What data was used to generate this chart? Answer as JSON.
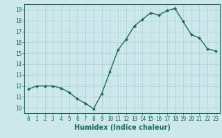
{
  "x": [
    0,
    1,
    2,
    3,
    4,
    5,
    6,
    7,
    8,
    9,
    10,
    11,
    12,
    13,
    14,
    15,
    16,
    17,
    18,
    19,
    20,
    21,
    22,
    23
  ],
  "y": [
    11.7,
    12.0,
    12.0,
    12.0,
    11.8,
    11.4,
    10.8,
    10.4,
    9.9,
    11.3,
    13.3,
    15.3,
    16.3,
    17.5,
    18.1,
    18.7,
    18.5,
    18.9,
    19.1,
    17.9,
    16.7,
    16.4,
    15.4,
    15.2
  ],
  "line_color": "#1a6b5a",
  "marker": "D",
  "marker_size": 2.0,
  "bg_color": "#cce8ea",
  "grid_color": "#b0d0d4",
  "xlabel": "Humidex (Indice chaleur)",
  "xlim": [
    -0.5,
    23.5
  ],
  "ylim": [
    9.5,
    19.5
  ],
  "yticks": [
    10,
    11,
    12,
    13,
    14,
    15,
    16,
    17,
    18,
    19
  ],
  "xticks": [
    0,
    1,
    2,
    3,
    4,
    5,
    6,
    7,
    8,
    9,
    10,
    11,
    12,
    13,
    14,
    15,
    16,
    17,
    18,
    19,
    20,
    21,
    22,
    23
  ],
  "tick_label_fontsize": 5.5,
  "xlabel_fontsize": 7.0,
  "line_width": 1.0
}
